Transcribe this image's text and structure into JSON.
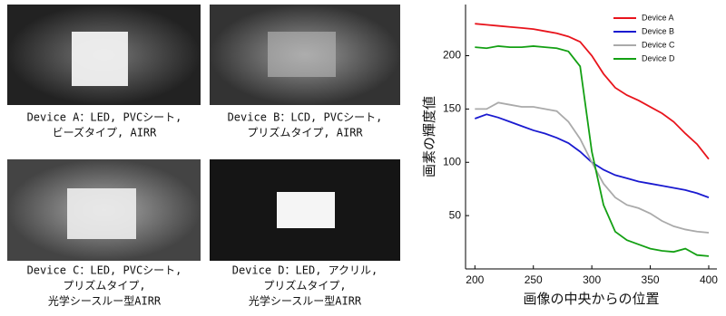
{
  "panels": [
    {
      "caption": [
        "Device A：LED, PVCシート,",
        "ビーズタイプ, AIRR"
      ]
    },
    {
      "caption": [
        "Device B：LCD, PVCシート,",
        "プリズムタイプ, AIRR"
      ]
    },
    {
      "caption": [
        "Device C：LED, PVCシート,",
        "プリズムタイプ,",
        "光学シースルー型AIRR"
      ]
    },
    {
      "caption": [
        "Device D：LED, アクリル,",
        "プリズムタイプ,",
        "光学シースルー型AIRR"
      ]
    }
  ],
  "chart_data": {
    "type": "line",
    "x_label": "画像の中央からの位置",
    "y_label": "画素の輝度値",
    "x": [
      200,
      210,
      220,
      230,
      240,
      250,
      260,
      270,
      280,
      290,
      300,
      310,
      320,
      330,
      340,
      350,
      360,
      370,
      380,
      390,
      400
    ],
    "series": [
      {
        "name": "Device A",
        "color": "#e8141c",
        "values": [
          230,
          229,
          228,
          227,
          226,
          225,
          223,
          221,
          218,
          213,
          200,
          183,
          170,
          163,
          158,
          152,
          146,
          138,
          127,
          117,
          103
        ]
      },
      {
        "name": "Device B",
        "color": "#1a1ad0",
        "values": [
          141,
          145,
          142,
          138,
          134,
          130,
          127,
          123,
          118,
          110,
          100,
          93,
          88,
          85,
          82,
          80,
          78,
          76,
          74,
          71,
          67
        ]
      },
      {
        "name": "Device C",
        "color": "#aaaaaa",
        "values": [
          150,
          150,
          156,
          154,
          152,
          152,
          150,
          148,
          138,
          122,
          100,
          80,
          67,
          60,
          57,
          52,
          45,
          40,
          37,
          35,
          34
        ]
      },
      {
        "name": "Device D",
        "color": "#14a014",
        "values": [
          208,
          207,
          209,
          208,
          208,
          209,
          208,
          207,
          204,
          190,
          110,
          60,
          35,
          27,
          23,
          19,
          17,
          16,
          19,
          13,
          12
        ]
      }
    ],
    "xlim": [
      192,
      407
    ],
    "ylim": [
      0,
      248
    ],
    "xticks": [
      200,
      250,
      300,
      350,
      400
    ],
    "yticks": [
      50,
      100,
      150,
      200
    ],
    "legend": "upper right"
  }
}
